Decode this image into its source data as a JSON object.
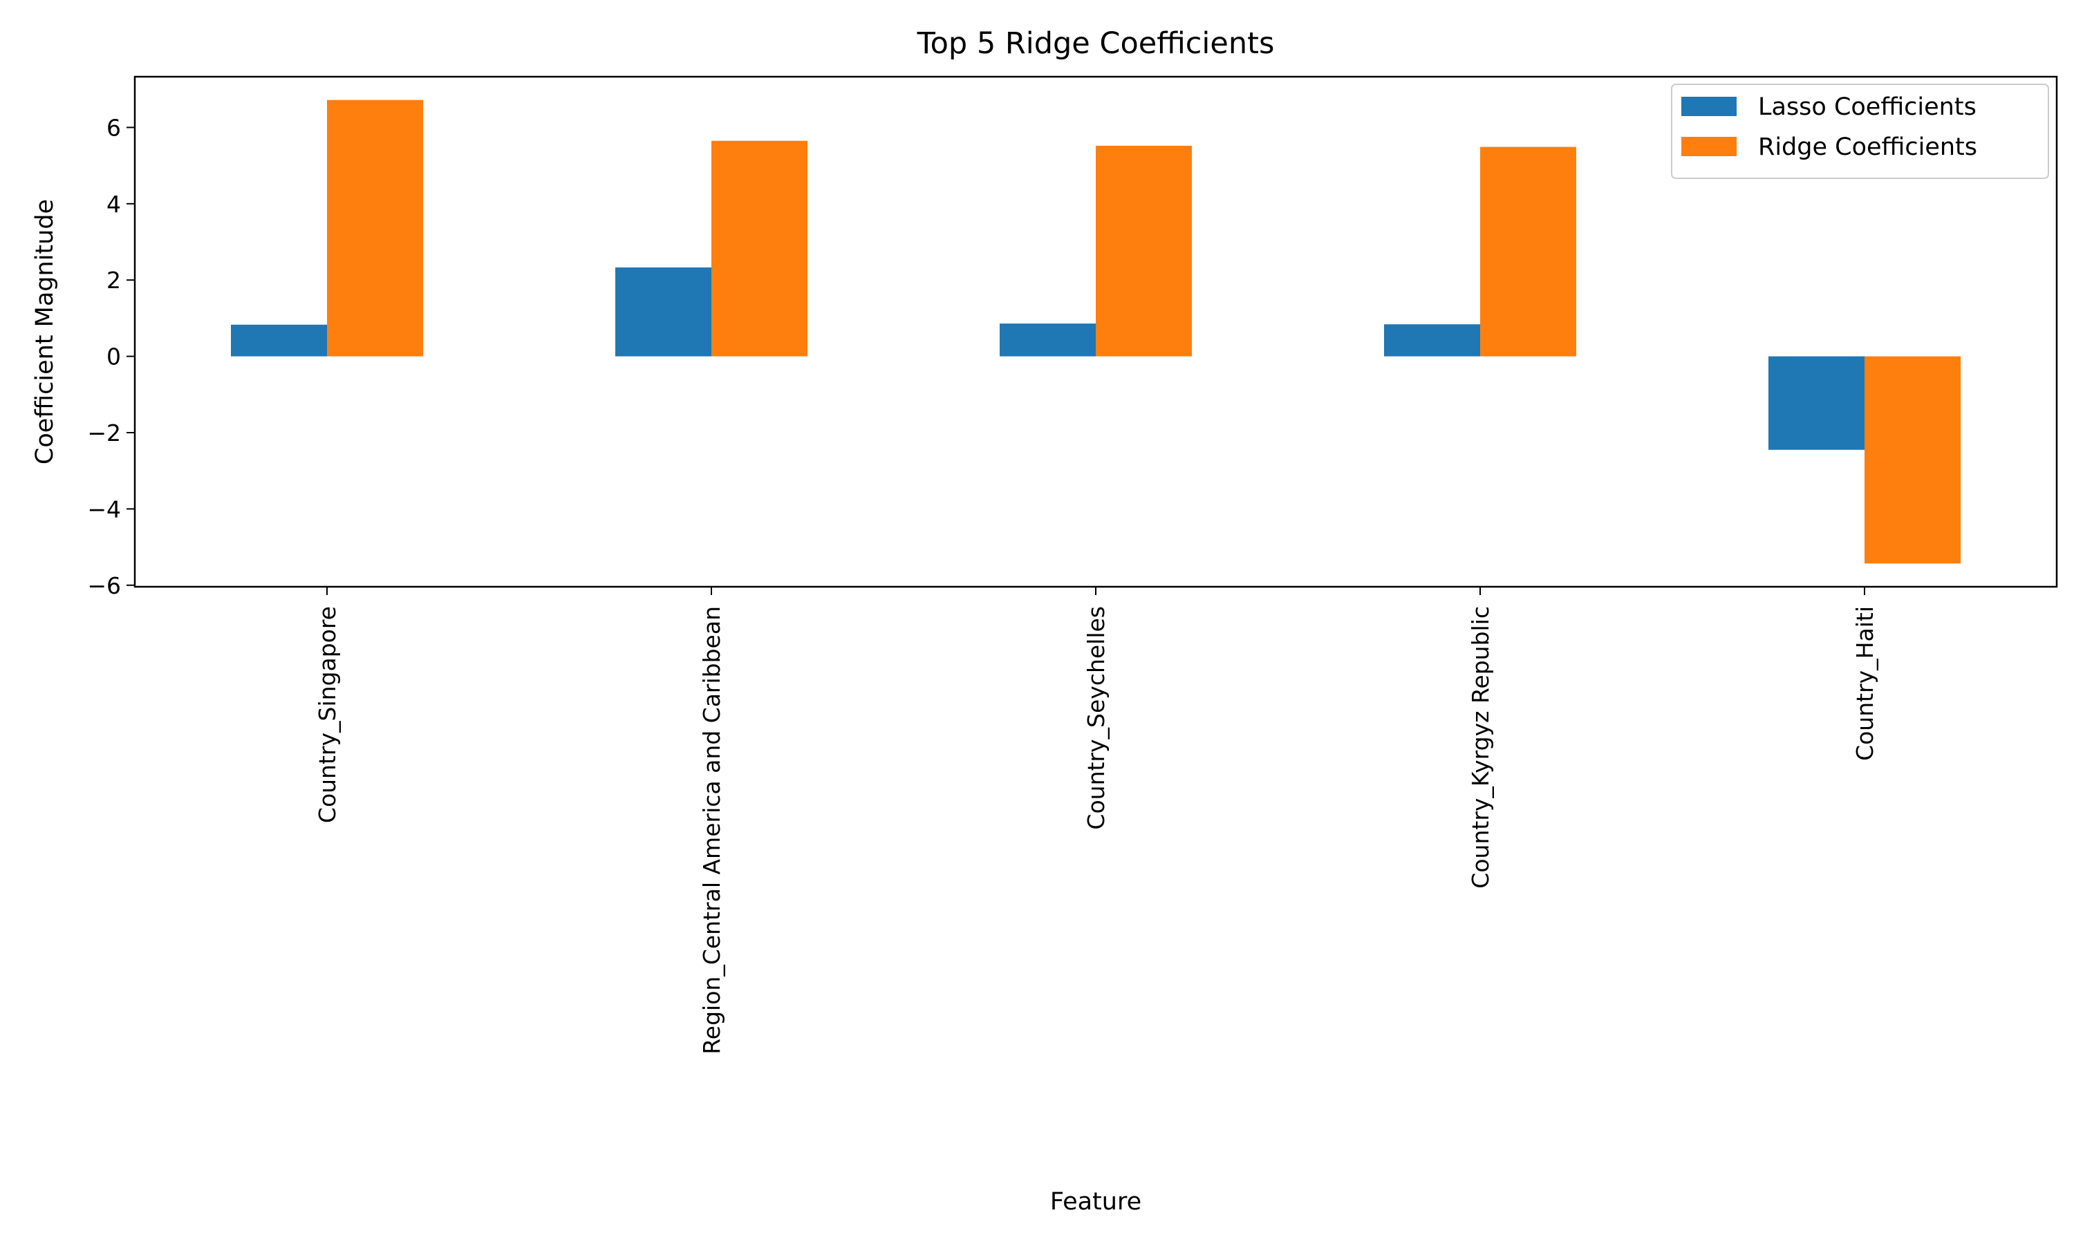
{
  "chart_data": {
    "type": "bar",
    "title": "Top 5 Ridge Coefficients",
    "xlabel": "Feature",
    "ylabel": "Coefficient Magnitude",
    "categories": [
      "Country_Singapore",
      "Region_Central America and Caribbean",
      "Country_Seychelles",
      "Country_Kyrgyz Republic",
      "Country_Haiti"
    ],
    "series": [
      {
        "name": "Lasso Coefficients",
        "color": "#1f77b4",
        "values": [
          0.83,
          2.33,
          0.86,
          0.84,
          -2.45
        ]
      },
      {
        "name": "Ridge Coefficients",
        "color": "#ff7f0e",
        "values": [
          6.72,
          5.65,
          5.52,
          5.49,
          -5.43
        ]
      }
    ],
    "yticks": [
      -6,
      -4,
      -2,
      0,
      2,
      4,
      6
    ],
    "ytick_labels": [
      "−6",
      "−4",
      "−2",
      "0",
      "2",
      "4",
      "6"
    ],
    "ylim": [
      -6.04,
      7.33
    ],
    "grid": false,
    "legend_position": "top-right"
  }
}
